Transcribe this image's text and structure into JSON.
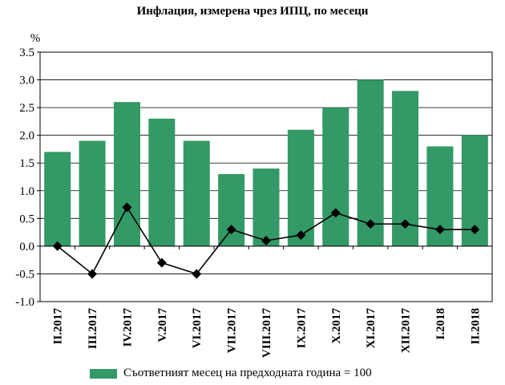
{
  "chart_data": {
    "type": "bar",
    "title": "Инфлация, измерена чрез ИПЦ, по месеци",
    "ylabel": "%",
    "xlabel": "",
    "ylim": [
      -1.0,
      3.5
    ],
    "yticks": [
      "-1.0",
      "-0.5",
      "0.0",
      "0.5",
      "1.0",
      "1.5",
      "2.0",
      "2.5",
      "3.0",
      "3.5"
    ],
    "grid": true,
    "legend_position": "bottom",
    "categories": [
      "II.2017",
      "III.2017",
      "IV.2017",
      "V.2017",
      "VI.2017",
      "VII.2017",
      "VIII.2017",
      "IX.2017",
      "X.2017",
      "XI.2017",
      "XII.2017",
      "I.2018",
      "II.2018"
    ],
    "series": [
      {
        "type": "bar",
        "name": "Съответният месец на предходната година = 100",
        "color": "#339966",
        "values": [
          1.7,
          1.9,
          2.6,
          2.3,
          1.9,
          1.3,
          1.4,
          2.1,
          2.5,
          3.0,
          2.8,
          1.8,
          2.0
        ]
      },
      {
        "type": "line",
        "color": "#000000",
        "marker": "diamond",
        "values": [
          0.0,
          -0.5,
          0.7,
          -0.3,
          -0.5,
          0.3,
          0.1,
          0.2,
          0.6,
          0.4,
          0.4,
          0.3,
          0.3
        ]
      }
    ]
  }
}
